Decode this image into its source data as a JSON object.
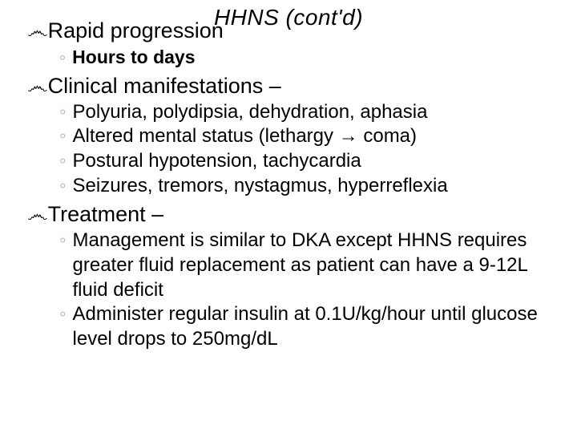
{
  "slide": {
    "title": "HHNS (cont'd)",
    "title_color": "#000000",
    "title_fontsize": 28,
    "bullet_glyph": "෴",
    "sub_glyph": "◦",
    "b1_fontsize": 27,
    "sub_bold_fontsize": 23,
    "sub_norm_fontsize": 24,
    "arrow": "→",
    "sections": [
      {
        "heading": "Rapid progression",
        "style": "bold",
        "items": [
          "Hours to days"
        ]
      },
      {
        "heading": "Clinical manifestations –",
        "style": "norm",
        "items": [
          "Polyuria, polydipsia, dehydration, aphasia",
          "Altered mental status (lethargy → coma)",
          "Postural hypotension, tachycardia",
          "Seizures, tremors, nystagmus, hyperreflexia"
        ]
      },
      {
        "heading": "Treatment –",
        "style": "norm",
        "items": [
          "Management is similar to DKA except HHNS requires greater fluid replacement as patient can have a 9-12L fluid deficit",
          "Administer regular insulin at 0.1U/kg/hour until glucose level drops to 250mg/dL"
        ]
      }
    ]
  }
}
